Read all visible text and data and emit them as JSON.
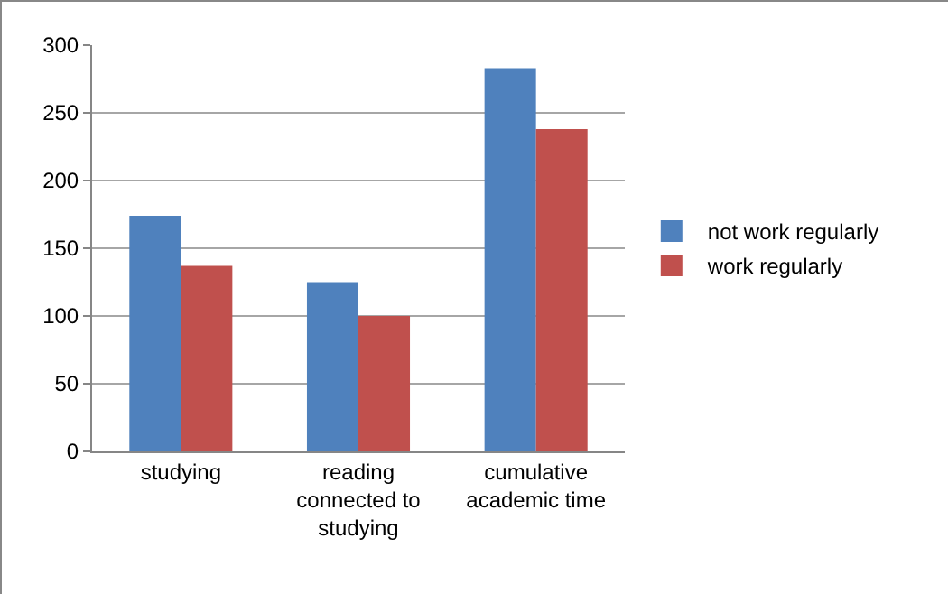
{
  "chart_data": {
    "type": "bar",
    "categories": [
      "studying",
      "reading connected to studying",
      "cumulative academic time"
    ],
    "series": [
      {
        "name": "not work regularly",
        "color": "#4f81bd",
        "values": [
          174,
          125,
          283
        ]
      },
      {
        "name": "work regularly",
        "color": "#c0504d",
        "values": [
          137,
          100,
          238
        ]
      }
    ],
    "ylim": [
      0,
      300
    ],
    "yticks": [
      0,
      50,
      100,
      150,
      200,
      250,
      300
    ],
    "grid": "y",
    "legend": "right"
  }
}
